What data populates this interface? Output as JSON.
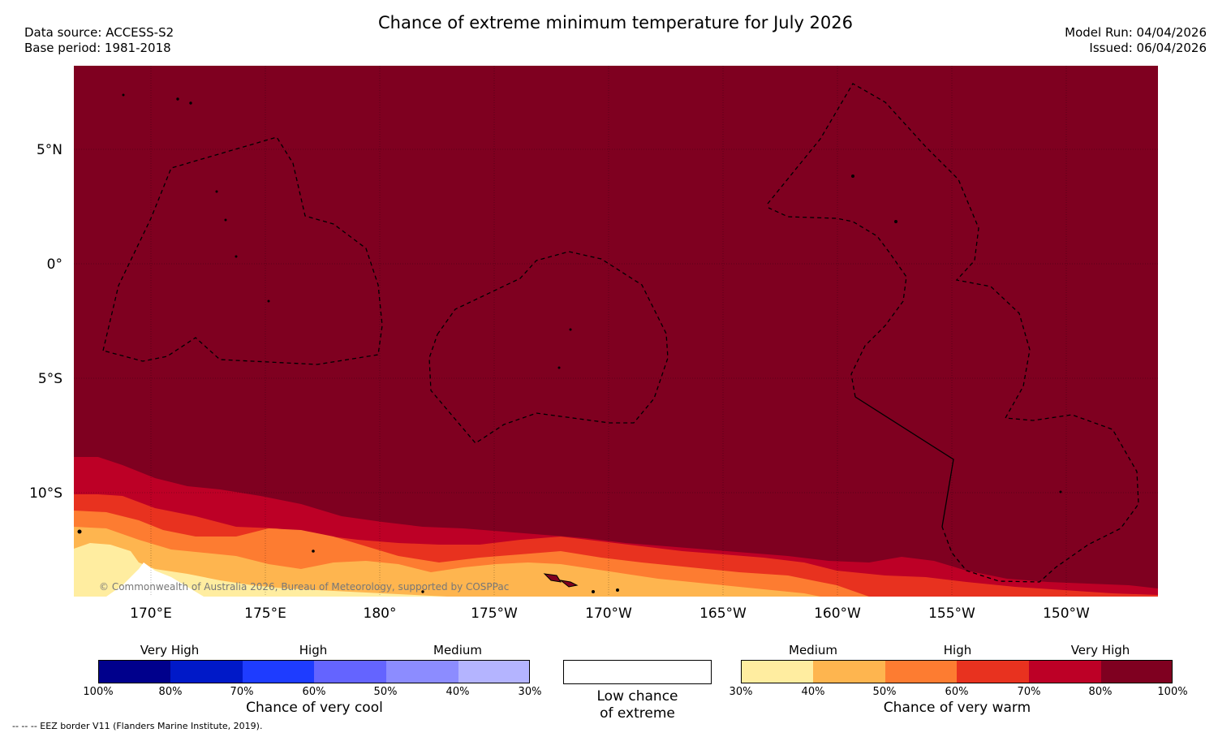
{
  "header": {
    "title": "Chance of extreme minimum temperature for July 2026",
    "data_source": "Data source: ACCESS-S2",
    "base_period": "Base period: 1981-2018",
    "model_run": "Model Run: 04/04/2026",
    "issued": "Issued: 06/04/2026"
  },
  "map": {
    "lat_labels": [
      "5°N",
      "0°",
      "5°S",
      "10°S"
    ],
    "lon_labels": [
      "170°E",
      "175°E",
      "180°",
      "175°W",
      "170°W",
      "165°W",
      "160°W",
      "155°W",
      "150°W"
    ],
    "copyright": "© Commonwealth of Australia 2026, Bureau of Meteorology, supported by COSPPac",
    "colors": {
      "very_high_warm": "#7f0020",
      "high_70": "#bd0026",
      "high_60": "#e8321f",
      "medium_50": "#fd7c31",
      "medium_40": "#feb54f",
      "medium_30": "#ffeda0"
    }
  },
  "legend": {
    "cool": {
      "top_labels": [
        "Very High",
        "High",
        "Medium"
      ],
      "ticks": [
        "100%",
        "80%",
        "70%",
        "60%",
        "50%",
        "40%",
        "30%"
      ],
      "colors": [
        "#00008c",
        "#0019c8",
        "#1e3cff",
        "#6464ff",
        "#8c8cff",
        "#b4b4ff"
      ],
      "title": "Chance of very cool"
    },
    "neutral": {
      "line1": "Low chance",
      "line2": "of extreme"
    },
    "warm": {
      "top_labels": [
        "Medium",
        "High",
        "Very High"
      ],
      "ticks": [
        "30%",
        "40%",
        "50%",
        "60%",
        "70%",
        "80%",
        "100%"
      ],
      "colors": [
        "#ffeda0",
        "#feb54f",
        "#fd7c31",
        "#e8321f",
        "#bd0026",
        "#7f0020"
      ],
      "title": "Chance of very warm"
    }
  },
  "footnote": "--  --  -- EEZ border V11 (Flanders Marine Institute, 2019)."
}
